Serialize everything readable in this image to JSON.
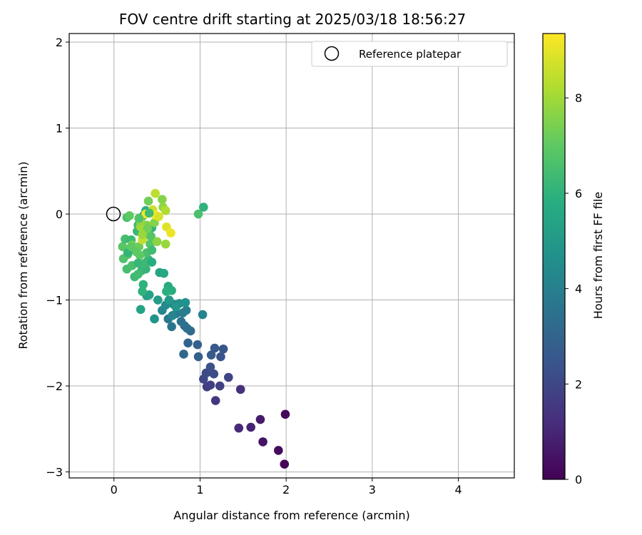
{
  "chart_data": {
    "type": "scatter",
    "title": "FOV centre drift starting at 2025/03/18 18:56:27",
    "xlabel": "Angular distance from reference (arcmin)",
    "ylabel": "Rotation from reference (arcmin)",
    "xlim": [
      -0.52,
      4.65
    ],
    "ylim": [
      -3.07,
      2.1
    ],
    "xticks": [
      "0",
      "1",
      "2",
      "3",
      "4"
    ],
    "yticks": [
      "−3",
      "−2",
      "−1",
      "0",
      "1",
      "2"
    ],
    "grid": true,
    "legend": {
      "position": "upper-right",
      "label": "Reference platepar"
    },
    "reference_point": {
      "x": 0,
      "y": 0
    },
    "colorbar": {
      "label": "Hours from first FF file",
      "range": [
        0,
        9.35
      ],
      "ticks": [
        "0",
        "2",
        "4",
        "6",
        "8"
      ],
      "colormap": "viridis"
    },
    "points": [
      [
        1.98,
        -2.91,
        0.1
      ],
      [
        1.91,
        -2.75,
        0.3
      ],
      [
        1.73,
        -2.65,
        0.5
      ],
      [
        1.7,
        -2.39,
        0.7
      ],
      [
        1.59,
        -2.48,
        0.9
      ],
      [
        1.45,
        -2.49,
        1.1
      ],
      [
        1.99,
        -2.33,
        0.2
      ],
      [
        1.47,
        -2.04,
        1.3
      ],
      [
        1.18,
        -2.17,
        1.5
      ],
      [
        1.08,
        -2.01,
        1.6
      ],
      [
        1.12,
        -1.99,
        1.7
      ],
      [
        1.23,
        -2.0,
        1.8
      ],
      [
        1.33,
        -1.9,
        1.9
      ],
      [
        1.04,
        -1.92,
        2.0
      ],
      [
        1.07,
        -1.85,
        2.1
      ],
      [
        1.16,
        -1.86,
        2.2
      ],
      [
        1.12,
        -1.78,
        2.3
      ],
      [
        1.24,
        -1.66,
        2.4
      ],
      [
        1.27,
        -1.57,
        2.5
      ],
      [
        1.17,
        -1.56,
        2.6
      ],
      [
        1.13,
        -1.64,
        2.7
      ],
      [
        0.98,
        -1.66,
        2.8
      ],
      [
        0.97,
        -1.52,
        2.9
      ],
      [
        0.86,
        -1.5,
        3.0
      ],
      [
        0.81,
        -1.63,
        3.1
      ],
      [
        0.89,
        -1.36,
        3.2
      ],
      [
        0.82,
        -1.3,
        3.3
      ],
      [
        0.85,
        -1.33,
        3.4
      ],
      [
        0.78,
        -1.25,
        3.5
      ],
      [
        0.67,
        -1.31,
        3.6
      ],
      [
        0.63,
        -1.22,
        3.7
      ],
      [
        0.72,
        -1.16,
        3.8
      ],
      [
        0.8,
        -1.15,
        3.9
      ],
      [
        0.84,
        -1.12,
        4.0
      ],
      [
        1.03,
        -1.17,
        4.1
      ],
      [
        0.68,
        -1.18,
        4.2
      ],
      [
        0.56,
        -1.12,
        4.3
      ],
      [
        0.6,
        -1.06,
        4.4
      ],
      [
        0.69,
        -1.05,
        4.5
      ],
      [
        0.76,
        -1.04,
        4.6
      ],
      [
        0.83,
        -1.03,
        4.7
      ],
      [
        0.47,
        -1.22,
        4.8
      ],
      [
        0.72,
        -1.08,
        4.9
      ],
      [
        0.64,
        -1.0,
        5.0
      ],
      [
        0.51,
        -1.0,
        5.1
      ],
      [
        0.38,
        -0.95,
        5.2
      ],
      [
        0.41,
        -0.94,
        5.3
      ],
      [
        0.31,
        -1.11,
        5.4
      ],
      [
        0.53,
        -0.68,
        5.5
      ],
      [
        0.58,
        -0.69,
        5.6
      ],
      [
        0.63,
        -0.84,
        5.7
      ],
      [
        0.67,
        -0.89,
        5.8
      ],
      [
        0.61,
        -0.9,
        5.9
      ],
      [
        0.33,
        -0.9,
        6.0
      ],
      [
        0.34,
        -0.82,
        6.0
      ],
      [
        0.37,
        -0.64,
        6.1
      ],
      [
        0.32,
        -0.66,
        6.2
      ],
      [
        0.24,
        -0.73,
        6.3
      ],
      [
        0.28,
        -0.7,
        6.4
      ],
      [
        0.15,
        -0.64,
        6.5
      ],
      [
        0.21,
        -0.6,
        6.6
      ],
      [
        0.11,
        -0.52,
        6.7
      ],
      [
        0.16,
        -0.47,
        6.8
      ],
      [
        0.1,
        -0.38,
        6.9
      ],
      [
        0.13,
        -0.29,
        6.5
      ],
      [
        0.2,
        -0.3,
        6.3
      ],
      [
        0.27,
        -0.2,
        6.2
      ],
      [
        0.28,
        -0.13,
        6.4
      ],
      [
        0.34,
        -0.02,
        6.0
      ],
      [
        0.37,
        0.04,
        5.9
      ],
      [
        0.15,
        -0.04,
        6.6
      ],
      [
        0.18,
        -0.02,
        7.0
      ],
      [
        0.4,
        0.15,
        7.3
      ],
      [
        0.42,
        -0.35,
        6.8
      ],
      [
        0.4,
        -0.53,
        6.2
      ],
      [
        0.38,
        -0.45,
        6.6
      ],
      [
        0.3,
        -0.48,
        7.0
      ],
      [
        0.24,
        -0.42,
        6.7
      ],
      [
        0.44,
        -0.42,
        6.4
      ],
      [
        0.4,
        -0.22,
        6.9
      ],
      [
        0.44,
        -0.16,
        6.1
      ],
      [
        0.34,
        -0.27,
        6.5
      ],
      [
        0.29,
        -0.38,
        7.2
      ],
      [
        0.21,
        -0.36,
        7.4
      ],
      [
        0.26,
        -0.44,
        7.0
      ],
      [
        0.38,
        -0.13,
        7.5
      ],
      [
        0.43,
        -0.26,
        6.8
      ],
      [
        0.47,
        -0.1,
        7.6
      ],
      [
        0.5,
        -0.32,
        7.7
      ],
      [
        0.57,
        0.08,
        7.8
      ],
      [
        0.6,
        -0.35,
        7.9
      ],
      [
        0.56,
        0.17,
        7.6
      ],
      [
        0.48,
        0.24,
        8.4
      ],
      [
        0.45,
        0.05,
        8.6
      ],
      [
        0.6,
        0.04,
        8.2
      ],
      [
        0.37,
        0.0,
        9.2
      ],
      [
        0.31,
        -0.15,
        8.0
      ],
      [
        0.39,
        -0.17,
        7.3
      ],
      [
        0.48,
        -0.01,
        9.3
      ],
      [
        0.52,
        -0.03,
        8.8
      ],
      [
        0.61,
        -0.15,
        8.9
      ],
      [
        0.66,
        -0.22,
        9.1
      ],
      [
        0.33,
        -0.3,
        8.5
      ],
      [
        0.33,
        -0.24,
        7.9
      ],
      [
        0.31,
        -0.09,
        7.8
      ],
      [
        0.98,
        0.0,
        6.6
      ],
      [
        1.04,
        0.08,
        6.0
      ],
      [
        0.16,
        -0.45,
        6.1
      ],
      [
        0.36,
        -0.57,
        6.3
      ],
      [
        0.28,
        -0.57,
        6.2
      ],
      [
        0.44,
        -0.56,
        5.8
      ],
      [
        0.2,
        -0.38,
        7.0
      ],
      [
        0.41,
        0.01,
        6.4
      ],
      [
        0.29,
        -0.05,
        6.7
      ]
    ]
  }
}
